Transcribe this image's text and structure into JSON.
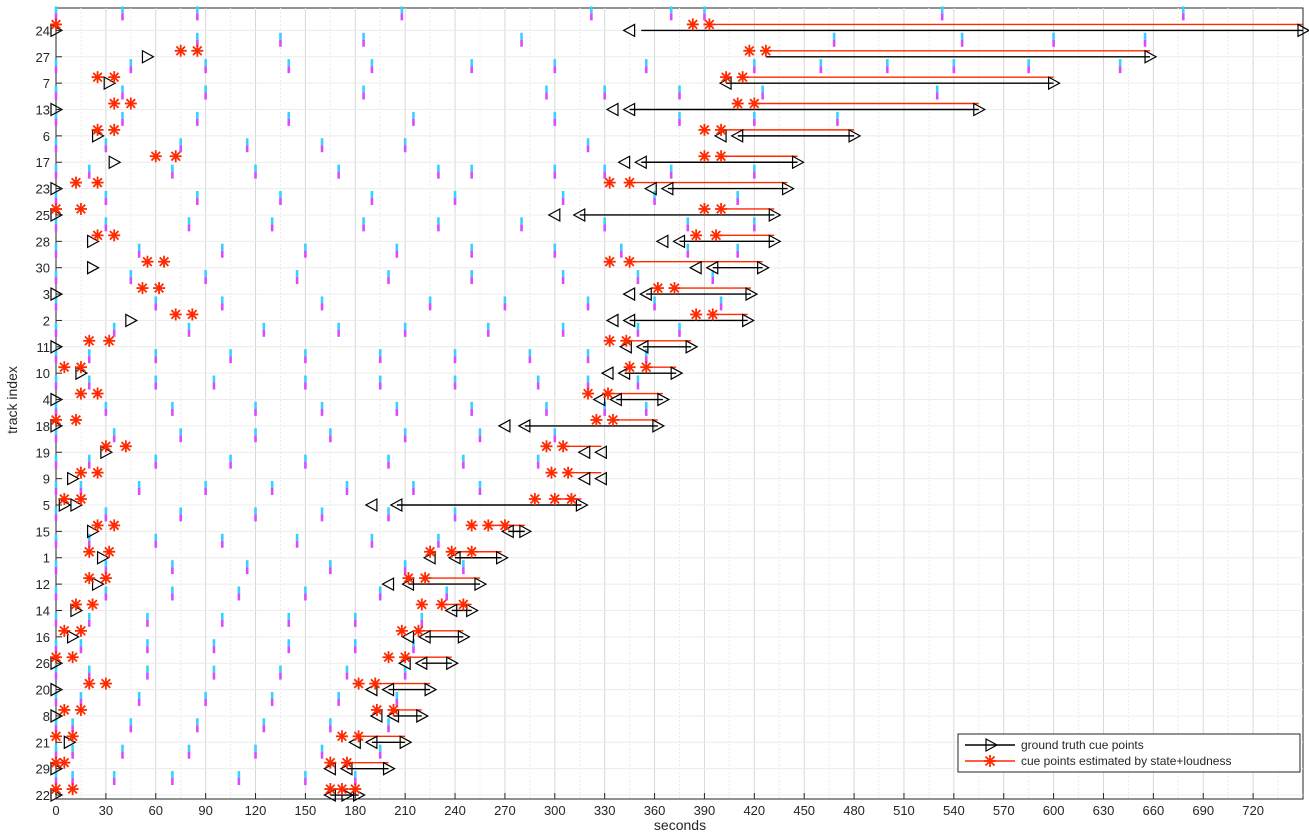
{
  "chart_data": {
    "type": "scatter",
    "title": "",
    "xlabel": "seconds",
    "ylabel": "track index",
    "xlim": [
      0,
      750
    ],
    "grid": true,
    "legend_position": "bottom-right",
    "x_ticks": [
      0,
      30,
      60,
      90,
      120,
      150,
      180,
      210,
      240,
      270,
      300,
      330,
      360,
      390,
      420,
      450,
      480,
      510,
      540,
      570,
      600,
      630,
      660,
      690,
      720
    ],
    "x_minor_step": 15,
    "y_tracks": [
      24,
      27,
      7,
      13,
      6,
      17,
      23,
      25,
      28,
      30,
      3,
      2,
      11,
      10,
      4,
      18,
      19,
      9,
      5,
      15,
      1,
      12,
      14,
      16,
      26,
      20,
      8,
      21,
      29,
      22
    ],
    "colors": {
      "ground_truth": "#000000",
      "estimated": "#ff2a00",
      "marks_a": "#39d0ff",
      "marks_b": "#d84cff"
    },
    "legend": [
      {
        "key": "ground_truth",
        "label": "ground truth cue points"
      },
      {
        "key": "estimated",
        "label": "cue points estimated by state+loudness"
      }
    ],
    "rows": [
      {
        "track": 24,
        "gt": [
          0,
          345,
          750
        ],
        "gt_pair": [
          352,
          750
        ],
        "est": [
          0,
          383,
          393
        ],
        "est_pair": [
          393,
          750
        ],
        "marks": [
          0,
          40,
          85,
          208,
          322,
          370,
          390,
          533,
          678
        ]
      },
      {
        "track": 27,
        "gt": [
          55,
          658
        ],
        "gt_pair": [
          427,
          658
        ],
        "est": [
          75,
          85,
          417,
          427
        ],
        "est_pair": [
          427,
          658
        ],
        "marks": [
          85,
          135,
          185,
          280,
          468,
          545,
          600,
          655
        ]
      },
      {
        "track": 7,
        "gt": [
          32,
          403,
          600
        ],
        "gt_pair": [
          403,
          600
        ],
        "est": [
          25,
          35,
          403,
          413
        ],
        "est_pair": [
          413,
          600
        ],
        "marks": [
          0,
          45,
          90,
          140,
          190,
          250,
          300,
          355,
          420,
          460,
          500,
          540,
          585,
          640
        ]
      },
      {
        "track": 13,
        "gt": [
          0,
          335,
          345,
          555
        ],
        "gt_pair": [
          345,
          555
        ],
        "est": [
          35,
          45,
          410,
          420
        ],
        "est_pair": [
          420,
          555
        ],
        "marks": [
          0,
          40,
          90,
          185,
          295,
          330,
          375,
          425,
          530
        ]
      },
      {
        "track": 6,
        "gt": [
          25,
          400,
          410,
          480
        ],
        "gt_pair": [
          410,
          480
        ],
        "est": [
          25,
          35,
          390,
          400
        ],
        "est_pair": [
          400,
          480
        ],
        "marks": [
          0,
          40,
          85,
          140,
          215,
          300,
          375,
          420,
          470
        ]
      },
      {
        "track": 17,
        "gt": [
          35,
          342,
          352,
          446
        ],
        "gt_pair": [
          352,
          446
        ],
        "est": [
          60,
          72,
          390,
          400
        ],
        "est_pair": [
          400,
          446
        ],
        "marks": [
          0,
          30,
          75,
          115,
          160,
          210,
          320
        ]
      },
      {
        "track": 23,
        "gt": [
          0,
          358,
          368,
          440
        ],
        "gt_pair": [
          368,
          440
        ],
        "est": [
          12,
          25,
          333,
          345
        ],
        "est_pair": [
          345,
          440
        ],
        "marks": [
          0,
          20,
          70,
          120,
          170,
          230,
          250,
          300,
          330,
          370,
          420
        ]
      },
      {
        "track": 25,
        "gt": [
          0,
          300,
          315,
          432
        ],
        "gt_pair": [
          315,
          432
        ],
        "est": [
          0,
          15,
          390,
          400
        ],
        "est_pair": [
          400,
          432
        ],
        "marks": [
          0,
          30,
          85,
          135,
          190,
          240,
          305,
          360,
          410
        ]
      },
      {
        "track": 28,
        "gt": [
          22,
          365,
          375,
          432
        ],
        "gt_pair": [
          375,
          432
        ],
        "est": [
          25,
          35,
          385,
          397
        ],
        "est_pair": [
          397,
          432
        ],
        "marks": [
          0,
          30,
          80,
          130,
          185,
          230,
          280,
          330,
          380,
          420
        ]
      },
      {
        "track": 30,
        "gt": [
          22,
          385,
          395,
          425
        ],
        "gt_pair": [
          395,
          425
        ],
        "est": [
          55,
          65,
          333,
          345
        ],
        "est_pair": [
          345,
          425
        ],
        "marks": [
          0,
          50,
          100,
          150,
          205,
          250,
          300,
          340,
          380,
          410
        ]
      },
      {
        "track": 3,
        "gt": [
          0,
          345,
          355,
          418
        ],
        "gt_pair": [
          355,
          418
        ],
        "est": [
          52,
          62,
          362,
          372
        ],
        "est_pair": [
          372,
          418
        ],
        "marks": [
          0,
          45,
          90,
          145,
          200,
          250,
          305,
          350,
          395
        ]
      },
      {
        "track": 2,
        "gt": [
          45,
          335,
          345,
          416
        ],
        "gt_pair": [
          345,
          416
        ],
        "est": [
          72,
          82,
          385,
          395
        ],
        "est_pair": [
          395,
          416
        ],
        "marks": [
          0,
          60,
          100,
          160,
          225,
          270,
          320,
          360,
          400
        ]
      },
      {
        "track": 11,
        "gt": [
          0,
          343,
          353,
          382
        ],
        "gt_pair": [
          353,
          382
        ],
        "est": [
          20,
          32,
          333,
          343
        ],
        "est_pair": [
          343,
          382
        ],
        "marks": [
          0,
          35,
          80,
          125,
          170,
          210,
          260,
          305,
          350,
          375
        ]
      },
      {
        "track": 10,
        "gt": [
          15,
          332,
          342,
          373
        ],
        "gt_pair": [
          342,
          373
        ],
        "est": [
          5,
          15,
          345,
          355
        ],
        "est_pair": [
          355,
          373
        ],
        "marks": [
          0,
          20,
          60,
          105,
          150,
          195,
          240,
          285,
          320,
          355
        ]
      },
      {
        "track": 4,
        "gt": [
          0,
          327,
          337,
          365
        ],
        "gt_pair": [
          337,
          365
        ],
        "est": [
          15,
          25,
          320,
          332
        ],
        "est_pair": [
          332,
          365
        ],
        "marks": [
          0,
          20,
          60,
          95,
          150,
          195,
          240,
          290,
          320,
          350
        ]
      },
      {
        "track": 18,
        "gt": [
          0,
          270,
          282,
          362
        ],
        "gt_pair": [
          282,
          362
        ],
        "est": [
          0,
          12,
          325,
          335
        ],
        "est_pair": [
          335,
          362
        ],
        "marks": [
          0,
          30,
          70,
          120,
          160,
          205,
          250,
          295,
          330,
          355
        ]
      },
      {
        "track": 19,
        "gt": [
          30,
          318,
          328
        ],
        "gt_pair": [
          328,
          328
        ],
        "est": [
          30,
          42,
          295,
          305
        ],
        "est_pair": [
          305,
          328
        ],
        "marks": [
          0,
          35,
          75,
          120,
          165,
          210,
          255,
          300
        ]
      },
      {
        "track": 9,
        "gt": [
          10,
          318,
          328
        ],
        "gt_pair": [
          328,
          328
        ],
        "est": [
          15,
          25,
          298,
          308
        ],
        "est_pair": [
          308,
          328
        ],
        "marks": [
          0,
          20,
          60,
          105,
          150,
          200,
          245,
          290
        ]
      },
      {
        "track": 5,
        "gt": [
          5,
          12,
          190,
          205,
          316
        ],
        "gt_pair": [
          205,
          316
        ],
        "est": [
          5,
          15,
          288,
          300,
          310
        ],
        "est_pair": [
          300,
          316
        ],
        "marks": [
          0,
          15,
          50,
          90,
          130,
          175,
          215,
          255
        ]
      },
      {
        "track": 15,
        "gt": [
          22,
          272,
          282
        ],
        "gt_pair": [
          272,
          282
        ],
        "est": [
          25,
          35,
          250,
          260,
          270
        ],
        "est_pair": [
          260,
          282
        ],
        "marks": [
          0,
          30,
          75,
          120,
          160,
          200,
          240
        ]
      },
      {
        "track": 1,
        "gt": [
          28,
          225,
          240,
          268
        ],
        "gt_pair": [
          240,
          268
        ],
        "est": [
          20,
          32,
          225,
          238,
          250
        ],
        "est_pair": [
          238,
          268
        ],
        "marks": [
          0,
          20,
          60,
          100,
          145,
          190,
          230
        ]
      },
      {
        "track": 12,
        "gt": [
          25,
          200,
          212,
          255
        ],
        "gt_pair": [
          212,
          255
        ],
        "est": [
          20,
          30,
          212,
          222
        ],
        "est_pair": [
          222,
          255
        ],
        "marks": [
          0,
          30,
          70,
          115,
          165,
          210,
          245
        ]
      },
      {
        "track": 14,
        "gt": [
          12,
          238,
          250
        ],
        "gt_pair": [
          238,
          250
        ],
        "est": [
          12,
          22,
          220,
          232,
          245
        ],
        "est_pair": [
          232,
          250
        ],
        "marks": [
          0,
          30,
          70,
          110,
          150,
          195,
          235
        ]
      },
      {
        "track": 16,
        "gt": [
          10,
          212,
          222,
          245
        ],
        "gt_pair": [
          222,
          245
        ],
        "est": [
          5,
          15,
          208,
          218
        ],
        "est_pair": [
          218,
          245
        ],
        "marks": [
          0,
          20,
          55,
          100,
          140,
          180,
          220
        ]
      },
      {
        "track": 26,
        "gt": [
          0,
          210,
          220,
          238
        ],
        "gt_pair": [
          220,
          238
        ],
        "est": [
          0,
          10,
          200,
          210
        ],
        "est_pair": [
          210,
          238
        ],
        "marks": [
          0,
          15,
          55,
          95,
          140,
          180,
          215
        ]
      },
      {
        "track": 20,
        "gt": [
          0,
          190,
          200,
          225
        ],
        "gt_pair": [
          200,
          225
        ],
        "est": [
          20,
          30,
          182,
          192
        ],
        "est_pair": [
          192,
          225
        ],
        "marks": [
          0,
          20,
          55,
          95,
          135,
          175,
          210
        ]
      },
      {
        "track": 8,
        "gt": [
          0,
          193,
          203,
          220
        ],
        "gt_pair": [
          203,
          220
        ],
        "est": [
          5,
          15,
          193,
          203
        ],
        "est_pair": [
          203,
          220
        ],
        "marks": [
          0,
          15,
          50,
          90,
          130,
          170,
          205
        ]
      },
      {
        "track": 21,
        "gt": [
          8,
          180,
          190,
          210
        ],
        "gt_pair": [
          190,
          210
        ],
        "est": [
          0,
          10,
          172,
          182
        ],
        "est_pair": [
          182,
          210
        ],
        "marks": [
          0,
          10,
          45,
          85,
          125,
          165,
          200
        ]
      },
      {
        "track": 29,
        "gt": [
          0,
          165,
          175,
          200
        ],
        "gt_pair": [
          175,
          200
        ],
        "est": [
          0,
          5,
          165,
          175
        ],
        "est_pair": [
          175,
          200
        ],
        "marks": [
          0,
          10,
          40,
          80,
          120,
          160,
          195
        ]
      },
      {
        "track": 22,
        "gt": [
          0,
          165,
          175,
          182
        ],
        "gt_pair": [
          165,
          182
        ],
        "est": [
          0,
          10,
          165,
          172,
          180
        ],
        "est_pair": [
          172,
          182
        ],
        "marks": [
          0,
          10,
          35,
          70,
          110,
          150,
          180
        ]
      }
    ]
  }
}
